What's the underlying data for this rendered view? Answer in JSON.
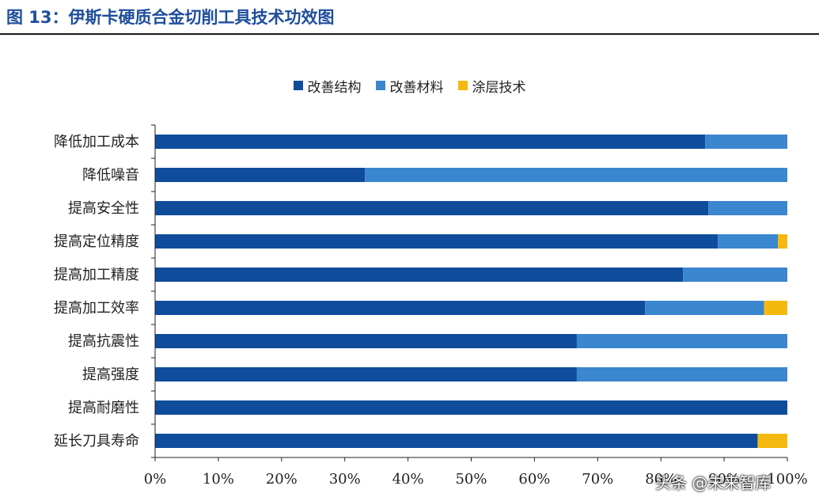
{
  "figure_title": "图 13：伊斯卡硬质合金切削工具技术功效图",
  "watermark": "头条 @未来智库",
  "chart_data": {
    "type": "bar",
    "orientation": "horizontal",
    "stacked": true,
    "categories": [
      "降低加工成本",
      "降低噪音",
      "提高安全性",
      "提高定位精度",
      "提高加工精度",
      "提高加工效率",
      "提高抗震性",
      "提高强度",
      "提高耐磨性",
      "延长刀具寿命"
    ],
    "series": [
      {
        "name": "改善结构",
        "color": "#0f4c9c",
        "values": [
          87.0,
          33.2,
          87.5,
          89.0,
          83.5,
          77.5,
          66.7,
          66.7,
          100.0,
          95.3
        ]
      },
      {
        "name": "改善材料",
        "color": "#3a86cf",
        "values": [
          13.0,
          66.8,
          12.5,
          9.5,
          16.5,
          18.8,
          33.3,
          33.3,
          0.0,
          0.0
        ]
      },
      {
        "name": "涂层技术",
        "color": "#f5b80f",
        "values": [
          0.0,
          0.0,
          0.0,
          1.5,
          0.0,
          3.7,
          0.0,
          0.0,
          0.0,
          4.7
        ]
      }
    ],
    "xlim": [
      0,
      100
    ],
    "xticks": [
      "0%",
      "10%",
      "20%",
      "30%",
      "40%",
      "50%",
      "60%",
      "70%",
      "80%",
      "90%",
      "100%"
    ],
    "legend_position": "top",
    "grid": false
  }
}
